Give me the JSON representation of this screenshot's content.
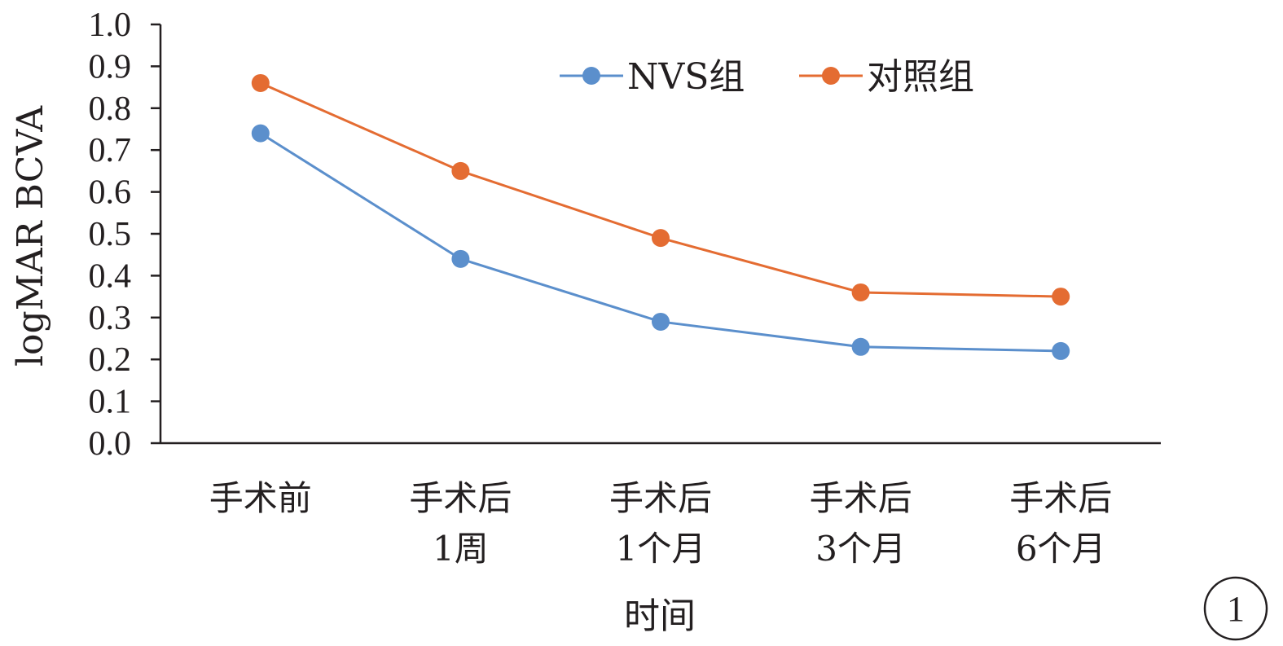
{
  "chart_data": {
    "type": "line",
    "categories": [
      [
        "手术前"
      ],
      [
        "手术后",
        "1周"
      ],
      [
        "手术后",
        "1个月"
      ],
      [
        "手术后",
        "3个月"
      ],
      [
        "手术后",
        "6个月"
      ]
    ],
    "series": [
      {
        "name": "NVS组",
        "color": "#5b8fcc",
        "values": [
          0.74,
          0.44,
          0.29,
          0.23,
          0.22
        ]
      },
      {
        "name": "对照组",
        "color": "#e46c32",
        "values": [
          0.86,
          0.65,
          0.49,
          0.36,
          0.35
        ]
      }
    ],
    "title": "",
    "xlabel": "时间",
    "ylabel": "logMAR BCVA",
    "ylim": [
      0,
      1.0
    ],
    "yticks": [
      "0.0",
      "0.1",
      "0.2",
      "0.3",
      "0.4",
      "0.5",
      "0.6",
      "0.7",
      "0.8",
      "0.9",
      "1.0"
    ],
    "grid": false,
    "legend_position": "top-center",
    "panel_label": "1"
  }
}
